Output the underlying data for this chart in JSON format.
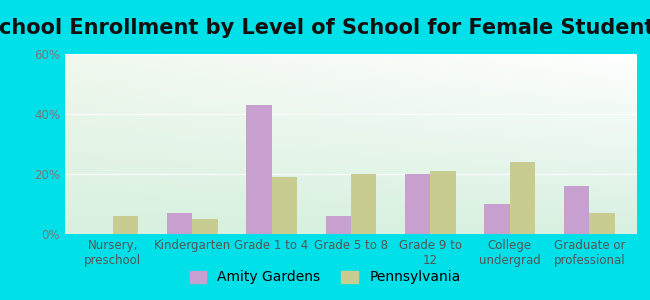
{
  "title": "School Enrollment by Level of School for Female Students",
  "categories": [
    "Nursery,\npreschool",
    "Kindergarten",
    "Grade 1 to 4",
    "Grade 5 to 8",
    "Grade 9 to\n12",
    "College\nundergrad",
    "Graduate or\nprofessional"
  ],
  "amity_gardens": [
    0,
    7,
    43,
    6,
    20,
    10,
    16
  ],
  "pennsylvania": [
    6,
    5,
    19,
    20,
    21,
    24,
    7
  ],
  "amity_color": "#c8a0d0",
  "pennsylvania_color": "#c8cc90",
  "background_outer": "#00e0e8",
  "background_plot_top_left": "#f0f8ee",
  "background_plot_top_right": "#ffffff",
  "background_plot_bottom": "#d8f0e0",
  "ylim": [
    0,
    60
  ],
  "yticks": [
    0,
    20,
    40,
    60
  ],
  "ytick_labels": [
    "0%",
    "20%",
    "40%",
    "60%"
  ],
  "title_fontsize": 15,
  "tick_fontsize": 8.5,
  "legend_fontsize": 10,
  "bar_width": 0.32,
  "figsize": [
    6.5,
    3.0
  ],
  "dpi": 100
}
